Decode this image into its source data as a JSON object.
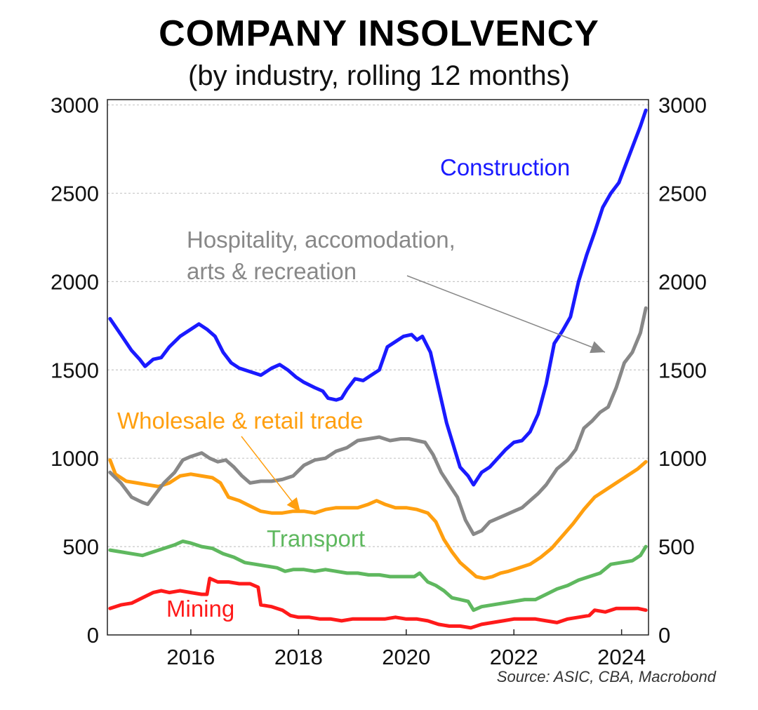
{
  "chart_data": {
    "type": "line",
    "title": "COMPANY INSOLVENCY",
    "subtitle": "(by industry, rolling 12 months)",
    "source": "Source: ASIC, CBA, Macrobond",
    "xlim": [
      2014.45,
      2024.5
    ],
    "ylim": [
      0,
      3000
    ],
    "x_ticks": [
      2016,
      2018,
      2020,
      2022,
      2024
    ],
    "y_ticks": [
      0,
      500,
      1000,
      1500,
      2000,
      2500,
      3000
    ],
    "grid": true,
    "legend": "none",
    "series": [
      {
        "name": "Construction",
        "color": "#1a1aff",
        "points": [
          [
            2014.5,
            1790
          ],
          [
            2014.7,
            1700
          ],
          [
            2014.9,
            1610
          ],
          [
            2015.05,
            1560
          ],
          [
            2015.15,
            1520
          ],
          [
            2015.3,
            1560
          ],
          [
            2015.45,
            1570
          ],
          [
            2015.6,
            1630
          ],
          [
            2015.8,
            1690
          ],
          [
            2016.0,
            1730
          ],
          [
            2016.15,
            1760
          ],
          [
            2016.3,
            1730
          ],
          [
            2016.45,
            1690
          ],
          [
            2016.6,
            1600
          ],
          [
            2016.75,
            1540
          ],
          [
            2016.9,
            1510
          ],
          [
            2017.1,
            1490
          ],
          [
            2017.3,
            1470
          ],
          [
            2017.5,
            1510
          ],
          [
            2017.65,
            1530
          ],
          [
            2017.8,
            1500
          ],
          [
            2017.95,
            1460
          ],
          [
            2018.1,
            1430
          ],
          [
            2018.3,
            1400
          ],
          [
            2018.45,
            1380
          ],
          [
            2018.55,
            1340
          ],
          [
            2018.7,
            1330
          ],
          [
            2018.8,
            1340
          ],
          [
            2018.9,
            1390
          ],
          [
            2019.05,
            1450
          ],
          [
            2019.2,
            1440
          ],
          [
            2019.35,
            1470
          ],
          [
            2019.5,
            1500
          ],
          [
            2019.65,
            1630
          ],
          [
            2019.8,
            1660
          ],
          [
            2019.95,
            1690
          ],
          [
            2020.1,
            1700
          ],
          [
            2020.2,
            1670
          ],
          [
            2020.3,
            1690
          ],
          [
            2020.45,
            1600
          ],
          [
            2020.6,
            1400
          ],
          [
            2020.75,
            1200
          ],
          [
            2020.9,
            1050
          ],
          [
            2021.0,
            950
          ],
          [
            2021.15,
            900
          ],
          [
            2021.25,
            850
          ],
          [
            2021.4,
            920
          ],
          [
            2021.55,
            950
          ],
          [
            2021.7,
            1000
          ],
          [
            2021.85,
            1050
          ],
          [
            2022.0,
            1090
          ],
          [
            2022.15,
            1100
          ],
          [
            2022.3,
            1150
          ],
          [
            2022.45,
            1250
          ],
          [
            2022.6,
            1420
          ],
          [
            2022.75,
            1650
          ],
          [
            2022.9,
            1720
          ],
          [
            2023.05,
            1800
          ],
          [
            2023.2,
            2000
          ],
          [
            2023.35,
            2150
          ],
          [
            2023.5,
            2280
          ],
          [
            2023.65,
            2420
          ],
          [
            2023.8,
            2500
          ],
          [
            2023.95,
            2560
          ],
          [
            2024.1,
            2680
          ],
          [
            2024.25,
            2800
          ],
          [
            2024.35,
            2880
          ],
          [
            2024.45,
            2970
          ]
        ],
        "label": "Construction"
      },
      {
        "name": "Hospitality, accomodation, arts & recreation",
        "color": "#888888",
        "points": [
          [
            2014.5,
            920
          ],
          [
            2014.7,
            860
          ],
          [
            2014.9,
            780
          ],
          [
            2015.1,
            750
          ],
          [
            2015.2,
            740
          ],
          [
            2015.35,
            800
          ],
          [
            2015.5,
            860
          ],
          [
            2015.7,
            920
          ],
          [
            2015.85,
            990
          ],
          [
            2016.0,
            1010
          ],
          [
            2016.2,
            1030
          ],
          [
            2016.35,
            1000
          ],
          [
            2016.5,
            980
          ],
          [
            2016.65,
            990
          ],
          [
            2016.8,
            950
          ],
          [
            2016.95,
            900
          ],
          [
            2017.1,
            860
          ],
          [
            2017.3,
            870
          ],
          [
            2017.5,
            870
          ],
          [
            2017.7,
            880
          ],
          [
            2017.9,
            900
          ],
          [
            2018.1,
            960
          ],
          [
            2018.3,
            990
          ],
          [
            2018.5,
            1000
          ],
          [
            2018.7,
            1040
          ],
          [
            2018.9,
            1060
          ],
          [
            2019.1,
            1100
          ],
          [
            2019.3,
            1110
          ],
          [
            2019.5,
            1120
          ],
          [
            2019.7,
            1100
          ],
          [
            2019.9,
            1110
          ],
          [
            2020.05,
            1110
          ],
          [
            2020.2,
            1100
          ],
          [
            2020.35,
            1090
          ],
          [
            2020.5,
            1020
          ],
          [
            2020.65,
            920
          ],
          [
            2020.8,
            850
          ],
          [
            2020.95,
            780
          ],
          [
            2021.1,
            650
          ],
          [
            2021.25,
            570
          ],
          [
            2021.4,
            590
          ],
          [
            2021.55,
            640
          ],
          [
            2021.7,
            660
          ],
          [
            2021.85,
            680
          ],
          [
            2022.0,
            700
          ],
          [
            2022.15,
            720
          ],
          [
            2022.3,
            760
          ],
          [
            2022.45,
            800
          ],
          [
            2022.6,
            850
          ],
          [
            2022.8,
            940
          ],
          [
            2023.0,
            990
          ],
          [
            2023.15,
            1050
          ],
          [
            2023.3,
            1170
          ],
          [
            2023.45,
            1210
          ],
          [
            2023.6,
            1260
          ],
          [
            2023.75,
            1290
          ],
          [
            2023.9,
            1400
          ],
          [
            2024.05,
            1540
          ],
          [
            2024.2,
            1600
          ],
          [
            2024.35,
            1710
          ],
          [
            2024.45,
            1850
          ]
        ],
        "label_lines": [
          "Hospitality, accomodation,",
          "arts & recreation"
        ]
      },
      {
        "name": "Wholesale & retail trade",
        "color": "#ff9f0f",
        "points": [
          [
            2014.5,
            990
          ],
          [
            2014.6,
            910
          ],
          [
            2014.8,
            870
          ],
          [
            2015.0,
            860
          ],
          [
            2015.2,
            850
          ],
          [
            2015.4,
            840
          ],
          [
            2015.6,
            860
          ],
          [
            2015.8,
            900
          ],
          [
            2016.0,
            910
          ],
          [
            2016.2,
            900
          ],
          [
            2016.4,
            890
          ],
          [
            2016.55,
            860
          ],
          [
            2016.7,
            780
          ],
          [
            2016.9,
            760
          ],
          [
            2017.1,
            730
          ],
          [
            2017.3,
            700
          ],
          [
            2017.5,
            690
          ],
          [
            2017.7,
            690
          ],
          [
            2017.9,
            700
          ],
          [
            2018.1,
            700
          ],
          [
            2018.3,
            690
          ],
          [
            2018.5,
            710
          ],
          [
            2018.7,
            720
          ],
          [
            2018.9,
            720
          ],
          [
            2019.1,
            720
          ],
          [
            2019.3,
            740
          ],
          [
            2019.45,
            760
          ],
          [
            2019.6,
            740
          ],
          [
            2019.8,
            720
          ],
          [
            2020.0,
            720
          ],
          [
            2020.2,
            710
          ],
          [
            2020.4,
            690
          ],
          [
            2020.55,
            640
          ],
          [
            2020.7,
            540
          ],
          [
            2020.85,
            470
          ],
          [
            2021.0,
            410
          ],
          [
            2021.15,
            370
          ],
          [
            2021.3,
            330
          ],
          [
            2021.45,
            320
          ],
          [
            2021.6,
            330
          ],
          [
            2021.75,
            350
          ],
          [
            2021.9,
            360
          ],
          [
            2022.1,
            380
          ],
          [
            2022.3,
            400
          ],
          [
            2022.5,
            440
          ],
          [
            2022.7,
            490
          ],
          [
            2022.9,
            560
          ],
          [
            2023.1,
            630
          ],
          [
            2023.3,
            710
          ],
          [
            2023.5,
            780
          ],
          [
            2023.7,
            820
          ],
          [
            2023.9,
            860
          ],
          [
            2024.1,
            900
          ],
          [
            2024.3,
            940
          ],
          [
            2024.45,
            980
          ]
        ],
        "label": "Wholesale & retail trade"
      },
      {
        "name": "Transport",
        "color": "#5fb85f",
        "points": [
          [
            2014.5,
            480
          ],
          [
            2014.7,
            470
          ],
          [
            2014.9,
            460
          ],
          [
            2015.1,
            450
          ],
          [
            2015.3,
            470
          ],
          [
            2015.5,
            490
          ],
          [
            2015.7,
            510
          ],
          [
            2015.85,
            530
          ],
          [
            2016.0,
            520
          ],
          [
            2016.2,
            500
          ],
          [
            2016.4,
            490
          ],
          [
            2016.6,
            460
          ],
          [
            2016.8,
            440
          ],
          [
            2017.0,
            410
          ],
          [
            2017.2,
            400
          ],
          [
            2017.4,
            390
          ],
          [
            2017.6,
            380
          ],
          [
            2017.75,
            360
          ],
          [
            2017.9,
            370
          ],
          [
            2018.1,
            370
          ],
          [
            2018.3,
            360
          ],
          [
            2018.5,
            370
          ],
          [
            2018.7,
            360
          ],
          [
            2018.9,
            350
          ],
          [
            2019.1,
            350
          ],
          [
            2019.3,
            340
          ],
          [
            2019.5,
            340
          ],
          [
            2019.7,
            330
          ],
          [
            2019.9,
            330
          ],
          [
            2020.05,
            330
          ],
          [
            2020.15,
            330
          ],
          [
            2020.25,
            350
          ],
          [
            2020.4,
            300
          ],
          [
            2020.55,
            280
          ],
          [
            2020.7,
            250
          ],
          [
            2020.85,
            210
          ],
          [
            2021.0,
            200
          ],
          [
            2021.15,
            190
          ],
          [
            2021.25,
            140
          ],
          [
            2021.4,
            160
          ],
          [
            2021.6,
            170
          ],
          [
            2021.8,
            180
          ],
          [
            2022.0,
            190
          ],
          [
            2022.2,
            200
          ],
          [
            2022.4,
            200
          ],
          [
            2022.6,
            230
          ],
          [
            2022.8,
            260
          ],
          [
            2023.0,
            280
          ],
          [
            2023.2,
            310
          ],
          [
            2023.4,
            330
          ],
          [
            2023.6,
            350
          ],
          [
            2023.8,
            400
          ],
          [
            2024.0,
            410
          ],
          [
            2024.2,
            420
          ],
          [
            2024.35,
            450
          ],
          [
            2024.45,
            500
          ]
        ],
        "label": "Transport"
      },
      {
        "name": "Mining",
        "color": "#ff1a1a",
        "points": [
          [
            2014.5,
            150
          ],
          [
            2014.7,
            170
          ],
          [
            2014.9,
            180
          ],
          [
            2015.1,
            210
          ],
          [
            2015.3,
            240
          ],
          [
            2015.45,
            250
          ],
          [
            2015.6,
            240
          ],
          [
            2015.8,
            250
          ],
          [
            2016.0,
            240
          ],
          [
            2016.2,
            230
          ],
          [
            2016.3,
            230
          ],
          [
            2016.35,
            320
          ],
          [
            2016.5,
            300
          ],
          [
            2016.7,
            300
          ],
          [
            2016.9,
            290
          ],
          [
            2017.1,
            290
          ],
          [
            2017.25,
            270
          ],
          [
            2017.3,
            170
          ],
          [
            2017.5,
            160
          ],
          [
            2017.7,
            140
          ],
          [
            2017.85,
            110
          ],
          [
            2018.0,
            100
          ],
          [
            2018.2,
            100
          ],
          [
            2018.4,
            90
          ],
          [
            2018.6,
            90
          ],
          [
            2018.8,
            80
          ],
          [
            2019.0,
            90
          ],
          [
            2019.2,
            90
          ],
          [
            2019.4,
            90
          ],
          [
            2019.6,
            90
          ],
          [
            2019.8,
            100
          ],
          [
            2020.0,
            90
          ],
          [
            2020.2,
            90
          ],
          [
            2020.4,
            80
          ],
          [
            2020.6,
            60
          ],
          [
            2020.8,
            50
          ],
          [
            2021.0,
            50
          ],
          [
            2021.2,
            40
          ],
          [
            2021.4,
            60
          ],
          [
            2021.6,
            70
          ],
          [
            2021.8,
            80
          ],
          [
            2022.0,
            90
          ],
          [
            2022.2,
            90
          ],
          [
            2022.4,
            90
          ],
          [
            2022.6,
            80
          ],
          [
            2022.8,
            70
          ],
          [
            2023.0,
            90
          ],
          [
            2023.2,
            100
          ],
          [
            2023.4,
            110
          ],
          [
            2023.5,
            140
          ],
          [
            2023.7,
            130
          ],
          [
            2023.9,
            150
          ],
          [
            2024.1,
            150
          ],
          [
            2024.3,
            150
          ],
          [
            2024.45,
            140
          ]
        ],
        "label": "Mining"
      }
    ]
  }
}
